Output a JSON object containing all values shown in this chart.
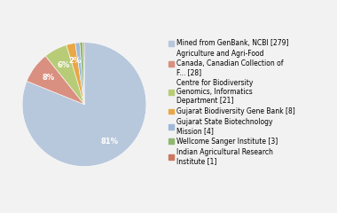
{
  "labels": [
    "Mined from GenBank, NCBI [279]",
    "Agriculture and Agri-Food\nCanada, Canadian Collection of\nF... [28]",
    "Centre for Biodiversity\nGenomics, Informatics\nDepartment [21]",
    "Gujarat Biodiversity Gene Bank [8]",
    "Gujarat State Biotechnology\nMission [4]",
    "Wellcome Sanger Institute [3]",
    "Indian Agricultural Research\nInstitute [1]"
  ],
  "values": [
    279,
    28,
    21,
    8,
    4,
    3,
    1
  ],
  "colors": [
    "#b8c8dc",
    "#d99080",
    "#b8cc78",
    "#e8a848",
    "#a0b8d8",
    "#90b870",
    "#cc7860"
  ],
  "background_color": "#f2f2f2",
  "startangle": 90,
  "legend_labels": [
    "Mined from GenBank, NCBI [279]",
    "Agriculture and Agri-Food\nCanada, Canadian Collection of\nF... [28]",
    "Centre for Biodiversity\nGenomics, Informatics\nDepartment [21]",
    "Gujarat Biodiversity Gene Bank [8]",
    "Gujarat State Biotechnology\nMission [4]",
    "Wellcome Sanger Institute [3]",
    "Indian Agricultural Research\nInstitute [1]"
  ],
  "pct_threshold": 1.5,
  "pct_fontsize": 6,
  "legend_fontsize": 5.5
}
